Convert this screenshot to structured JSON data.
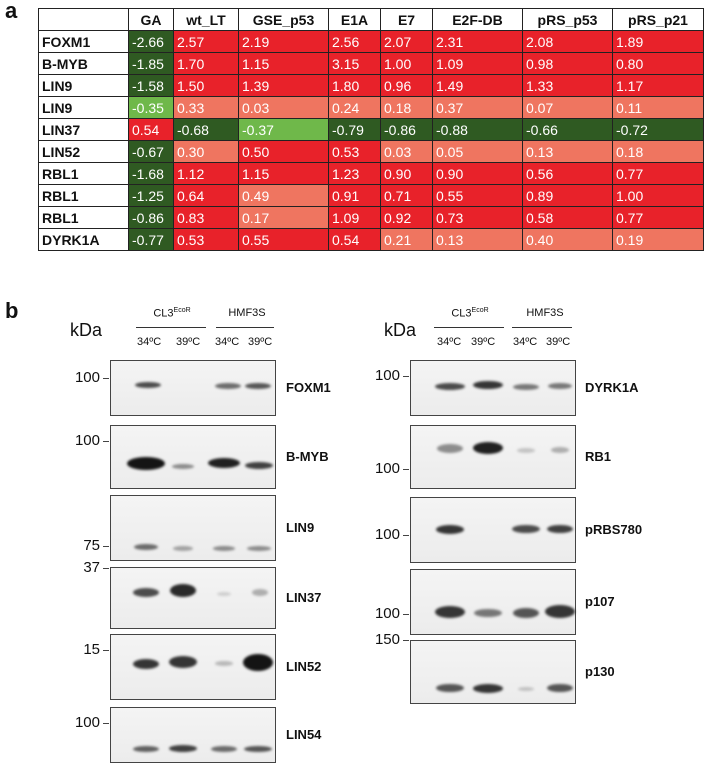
{
  "panel_a": {
    "label": "a",
    "columns": [
      "GA",
      "wt_LT",
      "GSE_p53",
      "E1A",
      "E7",
      "E2F-DB",
      "pRS_p53",
      "pRS_p21"
    ],
    "rows": [
      {
        "gene": "FOXM1",
        "values": [
          "-2.66",
          "2.57",
          "2.19",
          "2.56",
          "2.07",
          "2.31",
          "2.08",
          "1.89"
        ],
        "colors": [
          "dkgreen",
          "red",
          "red",
          "red",
          "red",
          "red",
          "red",
          "red"
        ]
      },
      {
        "gene": "B-MYB",
        "values": [
          "-1.85",
          "1.70",
          "1.15",
          "3.15",
          "1.00",
          "1.09",
          "0.98",
          "0.80"
        ],
        "colors": [
          "dkgreen",
          "red",
          "red",
          "red",
          "red",
          "red",
          "red",
          "red"
        ]
      },
      {
        "gene": "LIN9",
        "values": [
          "-1.58",
          "1.50",
          "1.39",
          "1.80",
          "0.96",
          "1.49",
          "1.33",
          "1.17"
        ],
        "colors": [
          "dkgreen",
          "red",
          "red",
          "red",
          "red",
          "red",
          "red",
          "red"
        ]
      },
      {
        "gene": "LIN9",
        "values": [
          "-0.35",
          "0.33",
          "0.03",
          "0.24",
          "0.18",
          "0.37",
          "0.07",
          "0.11"
        ],
        "colors": [
          "ltgreen",
          "pink",
          "pink",
          "pink",
          "pink",
          "pink",
          "pink",
          "pink"
        ]
      },
      {
        "gene": "LIN37",
        "values": [
          "0.54",
          "-0.68",
          "-0.37",
          "-0.79",
          "-0.86",
          "-0.88",
          "-0.66",
          "-0.72"
        ],
        "colors": [
          "red",
          "dkgreen",
          "ltgreen",
          "dkgreen",
          "dkgreen",
          "dkgreen",
          "dkgreen",
          "dkgreen"
        ]
      },
      {
        "gene": "LIN52",
        "values": [
          "-0.67",
          "0.30",
          "0.50",
          "0.53",
          "0.03",
          "0.05",
          "0.13",
          "0.18"
        ],
        "colors": [
          "dkgreen",
          "pink",
          "red",
          "red",
          "pink",
          "pink",
          "pink",
          "pink"
        ]
      },
      {
        "gene": "RBL1",
        "values": [
          "-1.68",
          "1.12",
          "1.15",
          "1.23",
          "0.90",
          "0.90",
          "0.56",
          "0.77"
        ],
        "colors": [
          "dkgreen",
          "red",
          "red",
          "red",
          "red",
          "red",
          "red",
          "red"
        ]
      },
      {
        "gene": "RBL1",
        "values": [
          "-1.25",
          "0.64",
          "0.49",
          "0.91",
          "0.71",
          "0.55",
          "0.89",
          "1.00"
        ],
        "colors": [
          "dkgreen",
          "red",
          "pink",
          "red",
          "red",
          "red",
          "red",
          "red"
        ]
      },
      {
        "gene": "RBL1",
        "values": [
          "-0.86",
          "0.83",
          "0.17",
          "1.09",
          "0.92",
          "0.73",
          "0.58",
          "0.77"
        ],
        "colors": [
          "dkgreen",
          "red",
          "pink",
          "red",
          "red",
          "red",
          "red",
          "red"
        ]
      },
      {
        "gene": "DYRK1A",
        "values": [
          "-0.77",
          "0.53",
          "0.55",
          "0.54",
          "0.21",
          "0.13",
          "0.40",
          "0.19"
        ],
        "colors": [
          "dkgreen",
          "red",
          "red",
          "red",
          "pink",
          "pink",
          "pink",
          "pink"
        ]
      }
    ]
  },
  "panel_b": {
    "label": "b",
    "kda": "kDa",
    "group_left": "CL3",
    "group_left_sup": "EcoR",
    "group_right": "HMF3S",
    "temps": [
      "34ºC",
      "39ºC",
      "34ºC",
      "39ºC"
    ],
    "left_blots": [
      {
        "protein": "FOXM1",
        "mw": "100"
      },
      {
        "protein": "B-MYB",
        "mw": "100"
      },
      {
        "protein": "LIN9",
        "mw": "75"
      },
      {
        "protein": "LIN37",
        "mw": "37"
      },
      {
        "protein": "LIN52",
        "mw": "15"
      },
      {
        "protein": "LIN54",
        "mw": "100"
      }
    ],
    "right_blots": [
      {
        "protein": "DYRK1A",
        "mw": "100"
      },
      {
        "protein": "RB1",
        "mw": "100"
      },
      {
        "protein": "pRBS780",
        "mw": "100"
      },
      {
        "protein": "p107",
        "mw": "100"
      },
      {
        "protein": "p130",
        "mw": "150"
      }
    ]
  }
}
